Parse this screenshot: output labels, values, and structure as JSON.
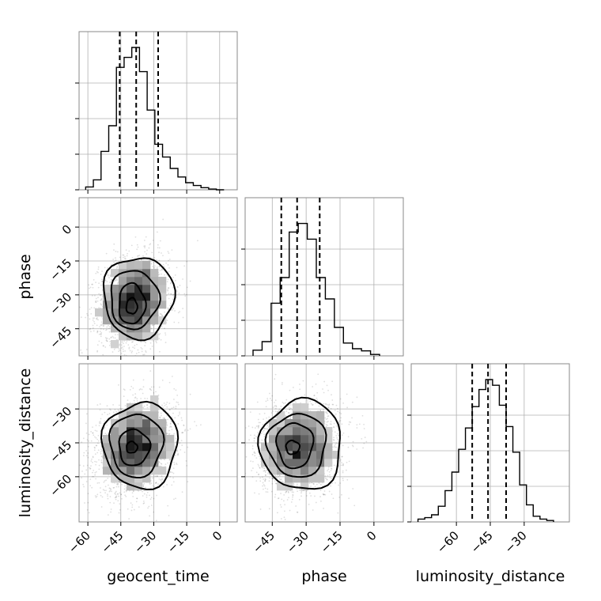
{
  "chart_data": {
    "type": "corner",
    "parameters": [
      "geocent_time",
      "phase",
      "luminosity_distance"
    ],
    "axis_labels": [
      "geocent_time",
      "phase",
      "luminosity_distance"
    ],
    "ranges": {
      "geocent_time": [
        -64,
        8
      ],
      "phase": [
        -57,
        13
      ],
      "luminosity_distance": [
        -80,
        -10
      ]
    },
    "ticks": {
      "geocent_time": [
        -60,
        -45,
        -30,
        -15,
        0
      ],
      "phase": [
        -45,
        -30,
        -15,
        0
      ],
      "luminosity_distance": [
        -60,
        -45,
        -30
      ]
    },
    "tick_labels": {
      "geocent_time": [
        "−60",
        "−45",
        "−30",
        "−15",
        "0"
      ],
      "phase": [
        "−45",
        "−30",
        "−15",
        "0"
      ],
      "luminosity_distance": [
        "−60",
        "−45",
        "−30"
      ]
    },
    "grid": true,
    "histograms": {
      "geocent_time": {
        "bin_edges": [
          -61,
          -57.5,
          -54,
          -50.5,
          -47,
          -43.5,
          -40,
          -36.5,
          -33,
          -29.5,
          -26,
          -22.5,
          -19,
          -15.5,
          -12,
          -8.5,
          -5,
          -1.5,
          2
        ],
        "counts": [
          0.02,
          0.07,
          0.27,
          0.45,
          0.86,
          0.93,
          1.0,
          0.83,
          0.56,
          0.32,
          0.23,
          0.15,
          0.09,
          0.05,
          0.03,
          0.015,
          0.005,
          0.0
        ],
        "quantiles": [
          -45.5,
          -38,
          -28
        ]
      },
      "phase": {
        "bin_edges": [
          -53.5,
          -49.5,
          -45.5,
          -41.5,
          -37.5,
          -33.5,
          -29.5,
          -25.5,
          -21.5,
          -17.5,
          -13.5,
          -9.5,
          -5.5,
          -1.5,
          2.5
        ],
        "counts": [
          0.04,
          0.1,
          0.37,
          0.55,
          0.87,
          0.93,
          0.82,
          0.55,
          0.4,
          0.2,
          0.09,
          0.05,
          0.035,
          0.01
        ],
        "quantiles": [
          -41,
          -34,
          -24
        ]
      },
      "luminosity_distance": {
        "bin_edges": [
          -77,
          -74,
          -71,
          -68,
          -65,
          -62,
          -59,
          -56,
          -53,
          -50,
          -47,
          -44,
          -41,
          -38,
          -35,
          -32,
          -29,
          -26,
          -23,
          -20,
          -17
        ],
        "counts": [
          0.02,
          0.03,
          0.05,
          0.11,
          0.22,
          0.35,
          0.51,
          0.66,
          0.81,
          0.93,
          1.0,
          0.96,
          0.82,
          0.67,
          0.49,
          0.26,
          0.12,
          0.04,
          0.02,
          0.01
        ],
        "quantiles": [
          -53,
          -46,
          -38
        ]
      }
    },
    "joint": [
      {
        "x": "geocent_time",
        "y": "phase",
        "mean": [
          -39,
          -33
        ],
        "sd": [
          8,
          10
        ],
        "rho": 0.15,
        "contours": [
          {
            "center": [
              -40,
              -35
            ],
            "radii": [
              2.5,
              3.5
            ]
          },
          {
            "center": [
              -40,
              -34
            ],
            "radii": [
              6,
              9
            ]
          },
          {
            "center": [
              -39,
              -32
            ],
            "radii": [
              11,
              13
            ]
          },
          {
            "center": [
              -37,
              -31
            ],
            "radii": [
              16,
              18
            ]
          }
        ]
      },
      {
        "x": "geocent_time",
        "y": "luminosity_distance",
        "mean": [
          -38,
          -47
        ],
        "sd": [
          9,
          10
        ],
        "rho": 0.2,
        "contours": [
          {
            "center": [
              -40,
              -47
            ],
            "radii": [
              2.5,
              2.5
            ]
          },
          {
            "center": [
              -39,
              -47
            ],
            "radii": [
              7,
              8
            ]
          },
          {
            "center": [
              -38,
              -46
            ],
            "radii": [
              12,
              14
            ]
          },
          {
            "center": [
              -36,
              -46
            ],
            "radii": [
              17,
              19
            ]
          }
        ]
      },
      {
        "x": "phase",
        "y": "luminosity_distance",
        "mean": [
          -33,
          -47
        ],
        "sd": [
          9,
          10
        ],
        "rho": 0.1,
        "contours": [
          {
            "center": [
              -36,
              -47
            ],
            "radii": [
              3,
              3
            ]
          },
          {
            "center": [
              -35,
              -46
            ],
            "radii": [
              8,
              10
            ]
          },
          {
            "center": [
              -34,
              -46
            ],
            "radii": [
              13,
              14
            ]
          },
          {
            "center": [
              -32,
              -46
            ],
            "radii": [
              18,
              20
            ]
          }
        ]
      }
    ]
  }
}
